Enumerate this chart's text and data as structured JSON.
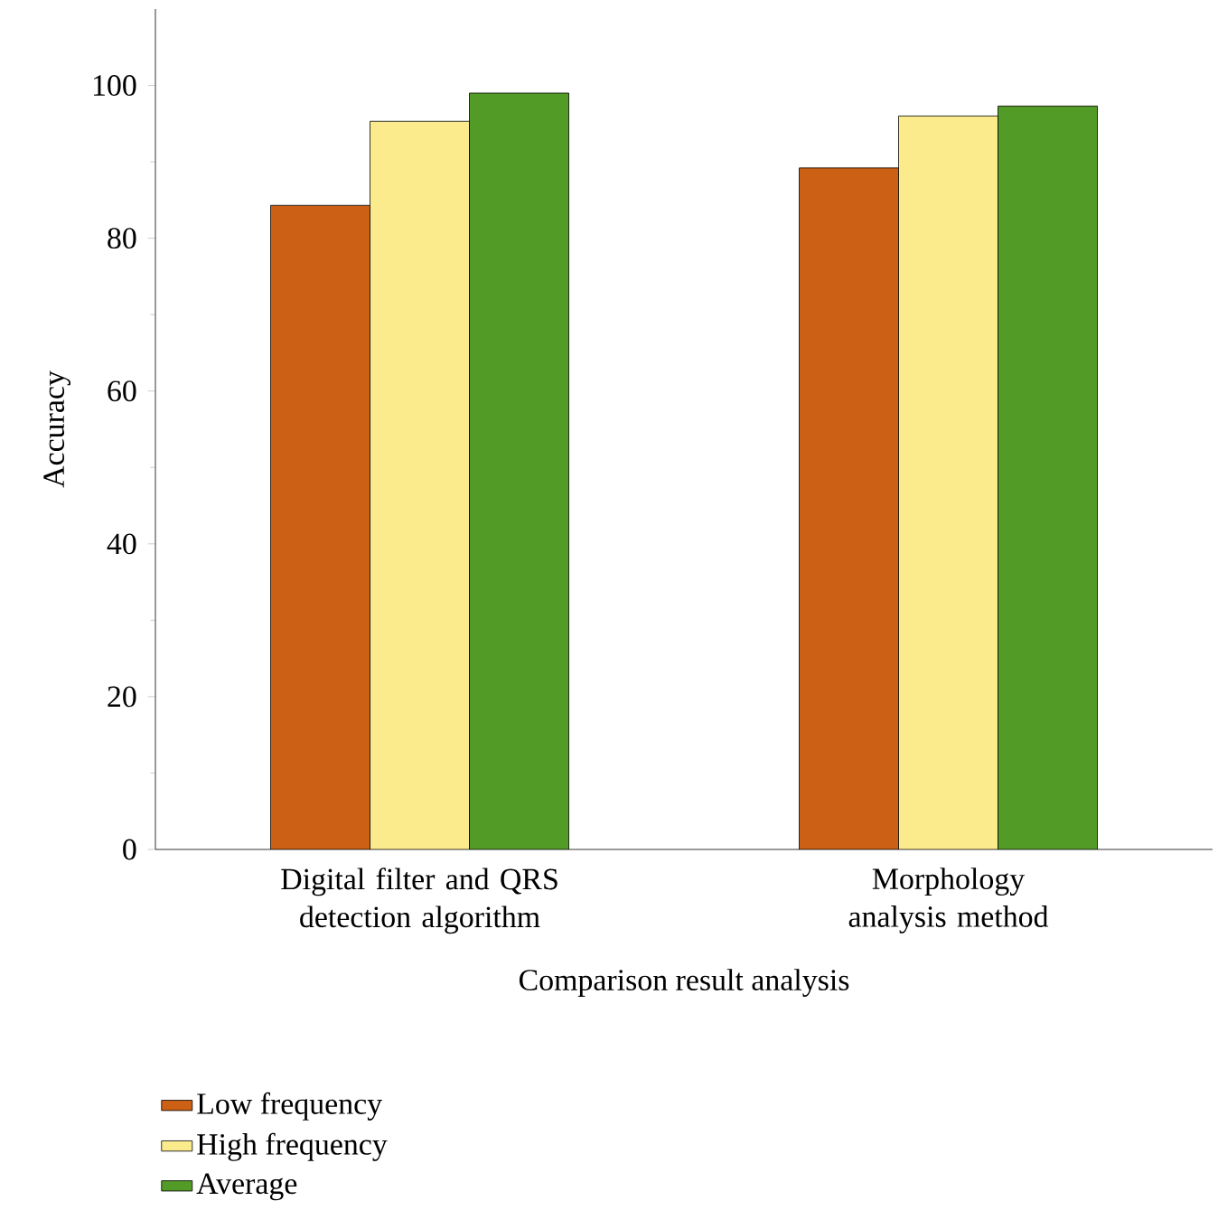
{
  "chart_data": {
    "type": "bar",
    "xlabel": "Comparison result analysis",
    "ylabel": "Accuracy",
    "categories": [
      "Digital filter and QRS detection algorithm",
      "Morphology analysis method"
    ],
    "series": [
      {
        "name": "Low frequency",
        "color": "#cc6014",
        "values": [
          84.3,
          89.2
        ]
      },
      {
        "name": "High frequency",
        "color": "#fbeb8c",
        "values": [
          95.3,
          96.0
        ]
      },
      {
        "name": "Average",
        "color": "#539b27",
        "values": [
          99.0,
          97.3
        ]
      }
    ],
    "ylim": [
      0,
      110
    ],
    "yticks": [
      0,
      20,
      40,
      60,
      80,
      100
    ],
    "grid": false,
    "legend": "bottom left"
  }
}
